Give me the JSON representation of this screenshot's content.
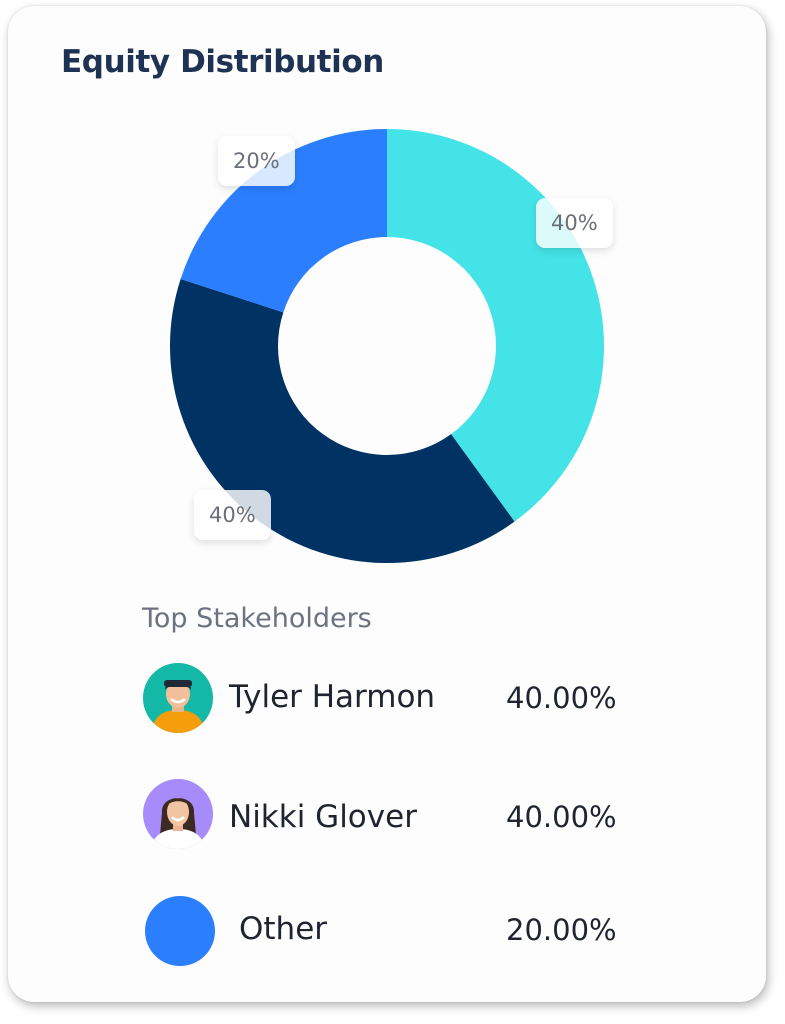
{
  "header": {
    "title": "Equity Distribution"
  },
  "chart_data": {
    "type": "pie",
    "title": "Equity Distribution",
    "slices": [
      {
        "label": "Tyler Harmon",
        "value": 40,
        "display": "40%",
        "color": "#44e3e7"
      },
      {
        "label": "Nikki Glover",
        "value": 40,
        "display": "40%",
        "color": "#003264"
      },
      {
        "label": "Other",
        "value": 20,
        "display": "20%",
        "color": "#2b7fff"
      }
    ]
  },
  "stakeholders": {
    "heading": "Top Stakeholders",
    "items": [
      {
        "name": "Tyler Harmon",
        "percent": "40.00%",
        "avatar_icon": "person-avatar",
        "avatar_bg": "#14b8a6"
      },
      {
        "name": "Nikki Glover",
        "percent": "40.00%",
        "avatar_icon": "person-avatar",
        "avatar_bg": "#a78bfa"
      },
      {
        "name": "Other",
        "percent": "20.00%",
        "avatar_icon": "color-dot",
        "avatar_bg": "#2b7fff"
      }
    ]
  }
}
